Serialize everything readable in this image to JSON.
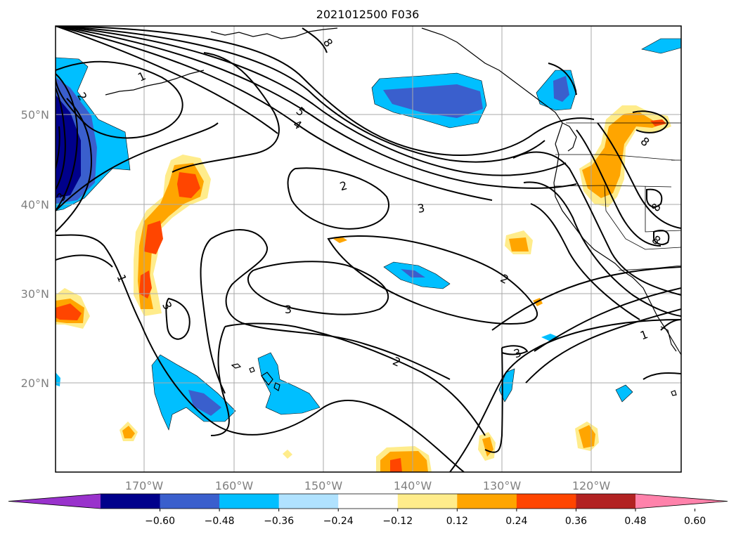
{
  "title": "2021012500 F036",
  "map": {
    "lat_labels": [
      "50°N",
      "40°N",
      "30°N",
      "20°N"
    ],
    "lon_labels": [
      "170°W",
      "160°W",
      "150°W",
      "140°W",
      "130°W",
      "120°W"
    ],
    "contour_labels": [
      "1",
      "2",
      "3",
      "4",
      "5",
      "8",
      "1",
      "2",
      "3",
      "2",
      "3",
      "2",
      "3",
      "1",
      "8",
      "8",
      "3",
      "8"
    ]
  },
  "colorbar": {
    "ticks": [
      "−0.60",
      "−0.48",
      "−0.36",
      "−0.24",
      "−0.12",
      "0.12",
      "0.24",
      "0.36",
      "0.48",
      "0.60"
    ],
    "colors": [
      "#9932cc",
      "#00008b",
      "#3a5fcd",
      "#00bfff",
      "#b0e2ff",
      "#ffffff",
      "#ffec8b",
      "#ffa500",
      "#ff4500",
      "#b22222",
      "#ff82ab"
    ]
  }
}
